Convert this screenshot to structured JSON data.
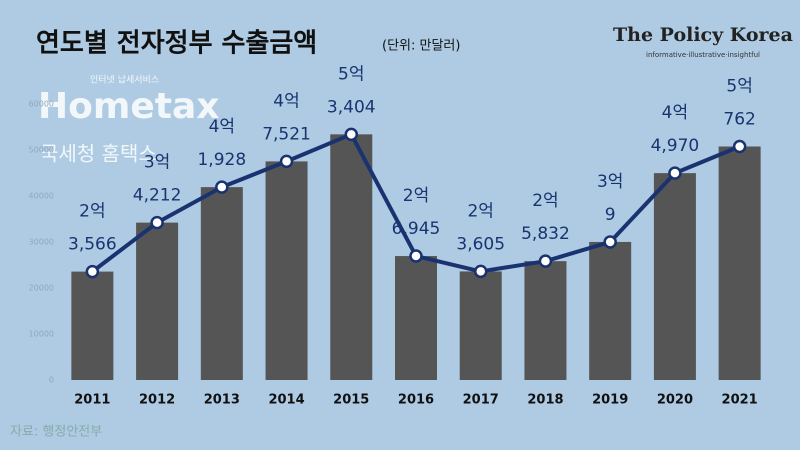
{
  "chart_data": {
    "type": "bar_line",
    "title": "연도별 전자정부 수출금액",
    "subtitle": "(단위: 만달러)",
    "source": "자료: 행정안전부",
    "brand": {
      "name": "The Policy Korea",
      "tagline": "informative·illustrative·insightful"
    },
    "watermark": {
      "top": "인터넷 납세서비스",
      "logo": "Hometax",
      "bottom": "국세청 홈택스"
    },
    "categories": [
      "2011",
      "2012",
      "2013",
      "2014",
      "2015",
      "2016",
      "2017",
      "2018",
      "2019",
      "2020",
      "2021"
    ],
    "values": [
      23566,
      34212,
      41928,
      47521,
      53404,
      26945,
      23605,
      25832,
      30009,
      44970,
      50762
    ],
    "value_labels": [
      [
        "2억",
        "3,566"
      ],
      [
        "3억",
        "4,212"
      ],
      [
        "4억",
        "1,928"
      ],
      [
        "4억",
        "7,521"
      ],
      [
        "5억",
        "3,404"
      ],
      [
        "2억",
        "6,945"
      ],
      [
        "2억",
        "3,605"
      ],
      [
        "2억",
        "5,832"
      ],
      [
        "3억",
        "9"
      ],
      [
        "4억",
        "4,970"
      ],
      [
        "5억",
        "762"
      ]
    ],
    "color": "#555555",
    "line_color": "#1a3370",
    "ylim": [
      0,
      60000
    ],
    "yticks": [
      0,
      10000,
      20000,
      30000,
      40000,
      50000,
      60000
    ],
    "grid": false
  }
}
